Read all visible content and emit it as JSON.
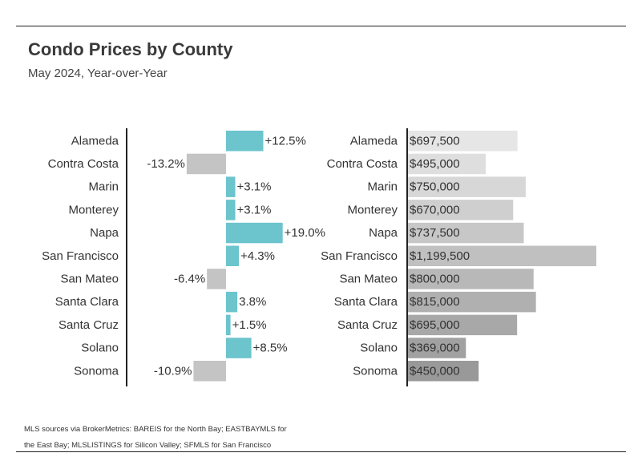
{
  "title": "Condo Prices by County",
  "subtitle": "May 2024, Year-over-Year",
  "footnote": "MLS sources via BrokerMetrics: BAREIS for the North Bay; EASTBAYMLS for the East Bay; MLSLISTINGS for Silicon Valley; SFMLS for San Francisco",
  "colors": {
    "positive": "#6cc4cc",
    "negative": "#c4c4c4",
    "price_light": "#e6e6e6",
    "price_dark": "#999999",
    "axis": "#222222",
    "text": "#333333"
  },
  "chart_data": [
    {
      "type": "bar",
      "orientation": "horizontal",
      "categories": [
        "Alameda",
        "Contra Costa",
        "Marin",
        "Monterey",
        "Napa",
        "San Francisco",
        "San Mateo",
        "Santa Clara",
        "Santa Cruz",
        "Solano",
        "Sonoma"
      ],
      "values": [
        12.5,
        -13.2,
        3.1,
        3.1,
        19.0,
        4.3,
        -6.4,
        3.8,
        1.5,
        8.5,
        -10.9
      ],
      "data_labels": [
        "+12.5%",
        "-13.2%",
        "+3.1%",
        "+3.1%",
        "+19.0%",
        "+4.3%",
        "-6.4%",
        "3.8%",
        "+1.5%",
        "+8.5%",
        "-10.9%"
      ],
      "xlim": [
        -17,
        21
      ]
    },
    {
      "type": "bar",
      "orientation": "horizontal",
      "categories": [
        "Alameda",
        "Contra Costa",
        "Marin",
        "Monterey",
        "Napa",
        "San Francisco",
        "San Mateo",
        "Santa Clara",
        "Santa Cruz",
        "Solano",
        "Sonoma"
      ],
      "values": [
        697500,
        495000,
        750000,
        670000,
        737500,
        1199500,
        800000,
        815000,
        695000,
        369000,
        450000
      ],
      "data_labels": [
        "$697,500",
        "$495,000",
        "$750,000",
        "$670,000",
        "$737,500",
        "$1,199,500",
        "$800,000",
        "$815,000",
        "$695,000",
        "$369,000",
        "$450,000"
      ],
      "xlim": [
        0,
        1199500
      ]
    }
  ]
}
